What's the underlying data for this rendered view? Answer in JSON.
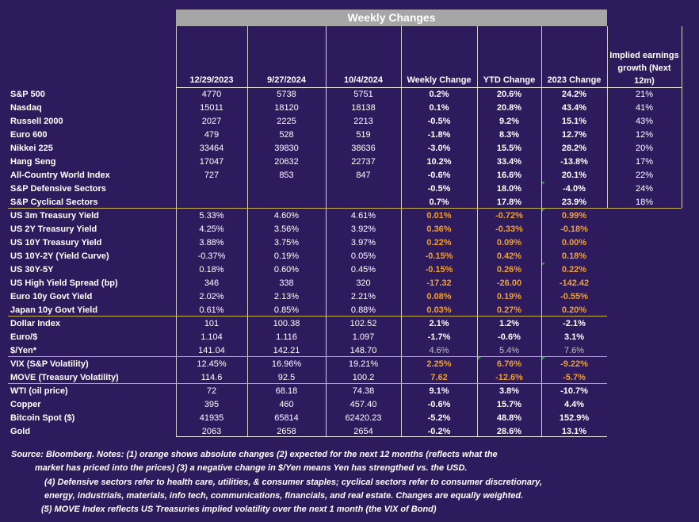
{
  "banner": "Weekly Changes",
  "headers": [
    "12/29/2023",
    "9/27/2024",
    "10/4/2024",
    "Weekly Change",
    "YTD Change",
    "2023 Change"
  ],
  "implied_header": "Implied earnings growth (Next 12m)",
  "rows": [
    {
      "label": "S&P 500",
      "c": [
        "4770",
        "5738",
        "5751",
        "0.2%",
        "20.6%",
        "24.2%",
        "21%"
      ],
      "o": [
        0,
        0,
        0,
        0,
        0,
        0
      ]
    },
    {
      "label": "Nasdaq",
      "c": [
        "15011",
        "18120",
        "18138",
        "0.1%",
        "20.8%",
        "43.4%",
        "41%"
      ],
      "o": [
        0,
        0,
        0,
        0,
        0,
        0
      ]
    },
    {
      "label": "Russell 2000",
      "c": [
        "2027",
        "2225",
        "2213",
        "-0.5%",
        "9.2%",
        "15.1%",
        "43%"
      ],
      "o": [
        0,
        0,
        0,
        0,
        0,
        0
      ]
    },
    {
      "label": "Euro 600",
      "c": [
        "479",
        "528",
        "519",
        "-1.8%",
        "8.3%",
        "12.7%",
        "12%"
      ],
      "o": [
        0,
        0,
        0,
        0,
        0,
        0
      ]
    },
    {
      "label": "Nikkei 225",
      "c": [
        "33464",
        "39830",
        "38636",
        "-3.0%",
        "15.5%",
        "28.2%",
        "20%"
      ],
      "o": [
        0,
        0,
        0,
        0,
        0,
        0
      ]
    },
    {
      "label": "Hang Seng",
      "c": [
        "17047",
        "20632",
        "22737",
        "10.2%",
        "33.4%",
        "-13.8%",
        "17%"
      ],
      "o": [
        0,
        0,
        0,
        0,
        0,
        0
      ]
    },
    {
      "label": "All-Country World Index",
      "c": [
        "727",
        "853",
        "847",
        "-0.6%",
        "16.6%",
        "20.1%",
        "22%"
      ],
      "o": [
        0,
        0,
        0,
        0,
        0,
        0
      ]
    },
    {
      "label": "S&P Defensive Sectors",
      "c": [
        "",
        "",
        "",
        "-0.5%",
        "18.0%",
        "-4.0%",
        "24%"
      ],
      "o": [
        0,
        0,
        0,
        0,
        0,
        0
      ]
    },
    {
      "label": "S&P Cyclical Sectors",
      "c": [
        "",
        "",
        "",
        "0.7%",
        "17.8%",
        "23.9%",
        "18%"
      ],
      "o": [
        0,
        0,
        0,
        0,
        0,
        0
      ]
    },
    {
      "label": "US 3m Treasury Yield",
      "c": [
        "5.33%",
        "4.60%",
        "4.61%",
        "0.01%",
        "-0.72%",
        "0.99%",
        ""
      ],
      "o": [
        0,
        0,
        0,
        1,
        1,
        1
      ]
    },
    {
      "label": "US 2Y Treasury Yield",
      "c": [
        "4.25%",
        "3.56%",
        "3.92%",
        "0.36%",
        "-0.33%",
        "-0.18%",
        ""
      ],
      "o": [
        0,
        0,
        0,
        1,
        1,
        1
      ]
    },
    {
      "label": "US 10Y Treasury Yield",
      "c": [
        "3.88%",
        "3.75%",
        "3.97%",
        "0.22%",
        "0.09%",
        "0.00%",
        ""
      ],
      "o": [
        0,
        0,
        0,
        1,
        1,
        1
      ]
    },
    {
      "label": "US 10Y-2Y (Yield Curve)",
      "c": [
        "-0.37%",
        "0.19%",
        "0.05%",
        "-0.15%",
        "0.42%",
        "0.18%",
        ""
      ],
      "o": [
        0,
        0,
        0,
        1,
        1,
        1
      ]
    },
    {
      "label": "US 30Y-5Y",
      "c": [
        "0.18%",
        "0.60%",
        "0.45%",
        "-0.15%",
        "0.26%",
        "0.22%",
        ""
      ],
      "o": [
        0,
        0,
        0,
        1,
        1,
        1
      ]
    },
    {
      "label": "US High Yield Spread (bp)",
      "c": [
        "346",
        "338",
        "320",
        "-17.32",
        "-26.00",
        "-142.42",
        ""
      ],
      "o": [
        0,
        0,
        0,
        1,
        1,
        1
      ]
    },
    {
      "label": "Euro 10y Govt Yield",
      "c": [
        "2.02%",
        "2.13%",
        "2.21%",
        "0.08%",
        "0.19%",
        "-0.55%",
        ""
      ],
      "o": [
        0,
        0,
        0,
        1,
        1,
        1
      ]
    },
    {
      "label": "Japan 10y Govt Yield",
      "c": [
        "0.61%",
        "0.85%",
        "0.88%",
        "0.03%",
        "0.27%",
        "0.20%",
        ""
      ],
      "o": [
        0,
        0,
        0,
        1,
        1,
        1
      ]
    },
    {
      "label": "Dollar Index",
      "c": [
        "101",
        "100.38",
        "102.52",
        "2.1%",
        "1.2%",
        "-2.1%",
        ""
      ],
      "o": [
        0,
        0,
        0,
        0,
        0,
        0
      ]
    },
    {
      "label": "Euro/$",
      "c": [
        "1.104",
        "1.116",
        "1.097",
        "-1.7%",
        "-0.6%",
        "3.1%",
        ""
      ],
      "o": [
        0,
        0,
        0,
        0,
        0,
        0
      ]
    },
    {
      "label": "$/Yen*",
      "c": [
        "141.04",
        "142.21",
        "148.70",
        "4.6%",
        "5.4%",
        "7.6%",
        ""
      ],
      "o": [
        0,
        0,
        0,
        2,
        2,
        2
      ]
    },
    {
      "label": "VIX (S&P Volatility)",
      "c": [
        "12.45%",
        "16.96%",
        "19.21%",
        "2.25%",
        "6.76%",
        "-9.22%",
        ""
      ],
      "o": [
        0,
        0,
        0,
        1,
        1,
        1
      ]
    },
    {
      "label": "MOVE (Treasury Volatility)",
      "c": [
        "114.6",
        "92.5",
        "100.2",
        "7.62",
        "-12.6%",
        "-5.7%",
        ""
      ],
      "o": [
        0,
        0,
        0,
        1,
        1,
        1
      ]
    },
    {
      "label": "WTI (oil price)",
      "c": [
        "72",
        "68.18",
        "74.38",
        "9.1%",
        "3.8%",
        "-10.7%",
        ""
      ],
      "o": [
        0,
        0,
        0,
        0,
        0,
        0
      ]
    },
    {
      "label": "Copper",
      "c": [
        "395",
        "460",
        "457.40",
        "-0.6%",
        "15.7%",
        "4.4%",
        ""
      ],
      "o": [
        0,
        0,
        0,
        0,
        0,
        0
      ]
    },
    {
      "label": "Bitcoin Spot ($)",
      "c": [
        "41935",
        "65814",
        "62420.23",
        "-5.2%",
        "48.8%",
        "152.9%",
        ""
      ],
      "o": [
        0,
        0,
        0,
        0,
        0,
        0
      ]
    },
    {
      "label": "Gold",
      "c": [
        "2063",
        "2658",
        "2654",
        "-0.2%",
        "28.6%",
        "13.1%",
        ""
      ],
      "o": [
        0,
        0,
        0,
        0,
        0,
        0
      ]
    }
  ],
  "notes": [
    "Source: Bloomberg. Notes: (1) orange shows absolute changes (2) expected for the next 12 months (reflects what the",
    "market has priced into the prices) (3) a negative change in $/Yen means Yen has strengthed vs. the USD.",
    "(4) Defensive sectors refer to health care, utilities, & consumer staples; cyclical sectors refer to consumer discretionary,",
    "energy, industrials, materials, info tech, communications, financials, and real estate. Changes are equally weighted.",
    "(5) MOVE Index reflects US Treasuries implied volatility over the next 1 month (the VIX of Bond)"
  ],
  "colors": {
    "background": "#2e1b5e",
    "orange": "#f0a030",
    "banner": "#a6a6a6",
    "divider": "#c9b44a"
  }
}
